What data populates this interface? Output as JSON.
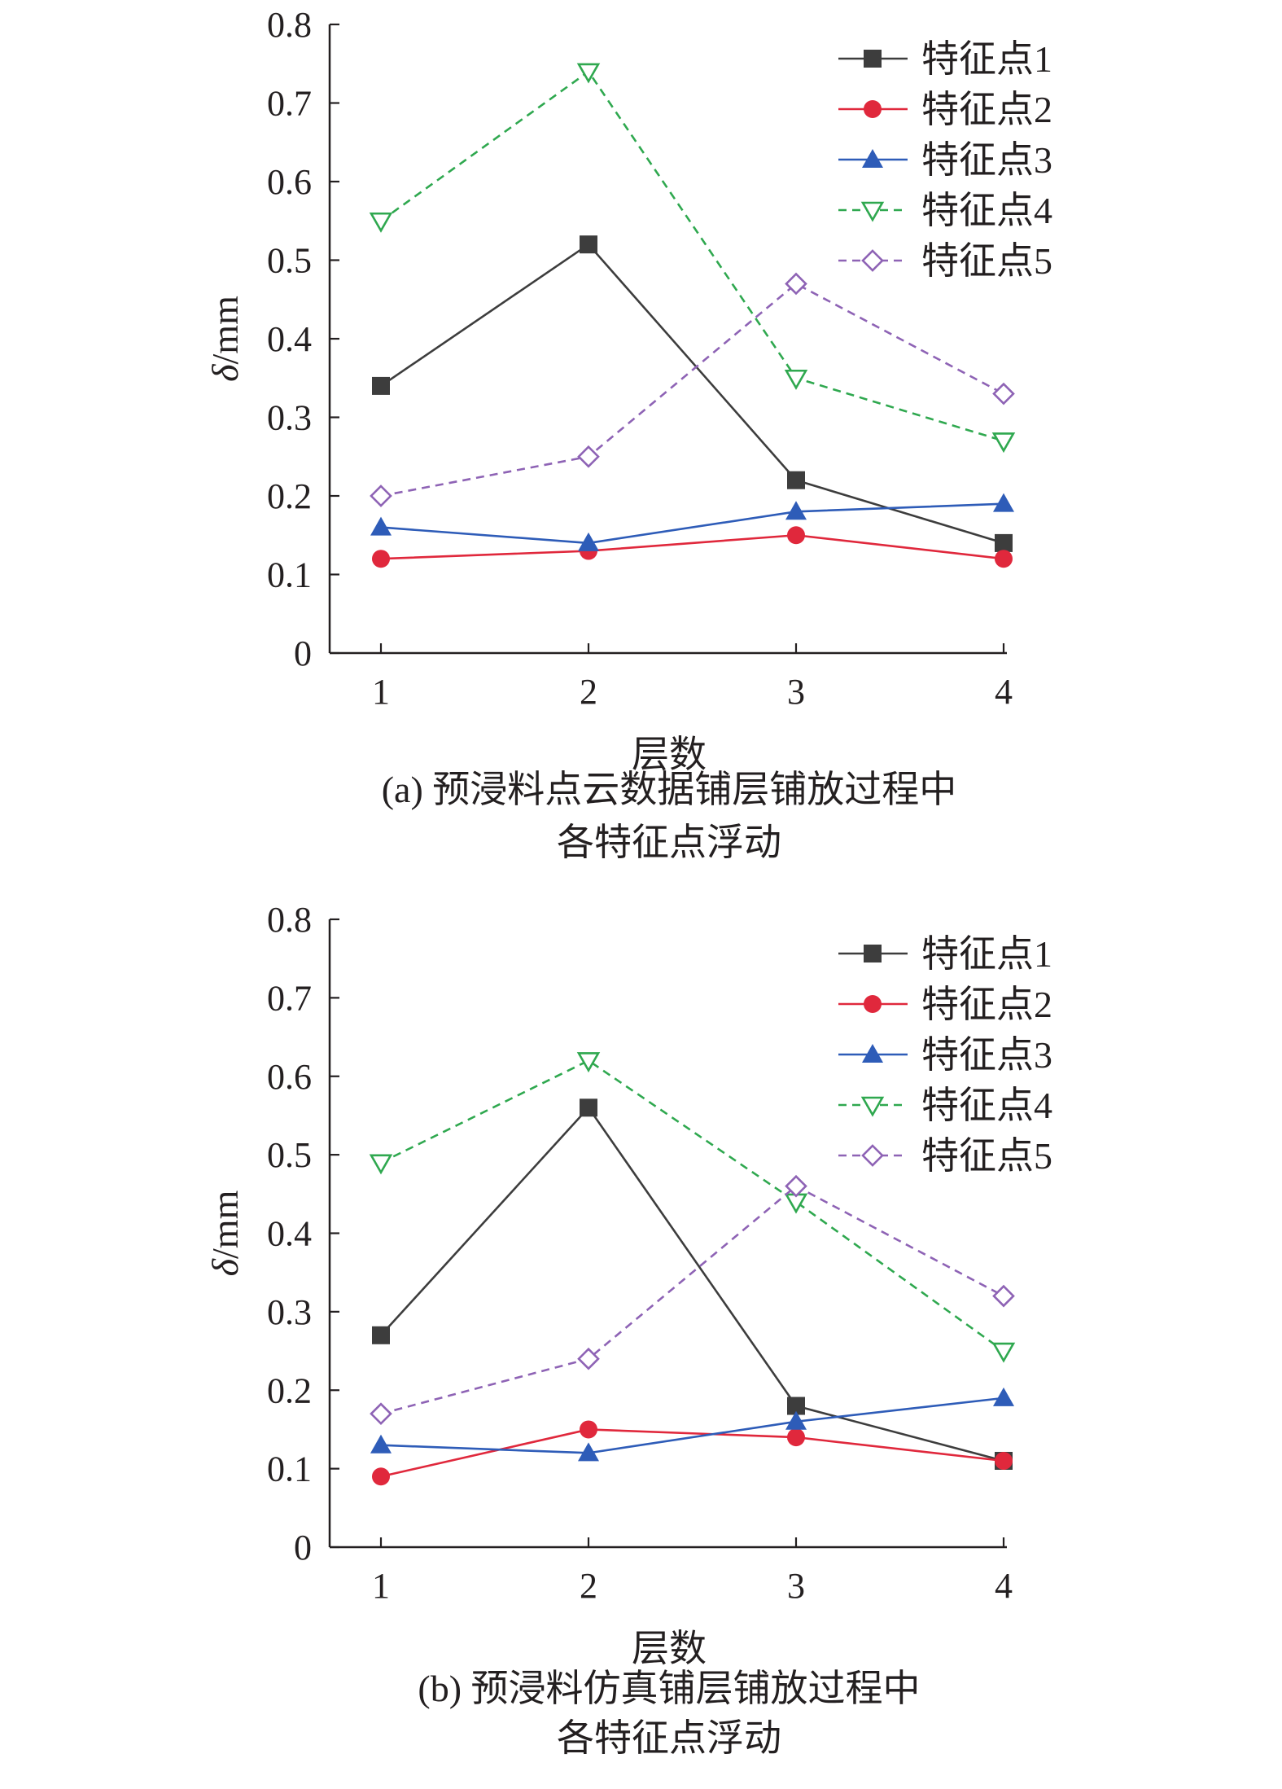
{
  "chart_data": [
    {
      "type": "line",
      "caption_line1": "(a) 预浸料点云数据铺层铺放过程中",
      "caption_line2": "各特征点浮动",
      "xlabel": "层数",
      "ylabel_italic": "δ",
      "ylabel_unit": "/mm",
      "categories": [
        "1",
        "2",
        "3",
        "4"
      ],
      "ylim": [
        0,
        0.8
      ],
      "yticks": [
        "0",
        "0.1",
        "0.2",
        "0.3",
        "0.4",
        "0.5",
        "0.6",
        "0.7",
        "0.8"
      ],
      "grid": false,
      "legend_position": "top-right",
      "series": [
        {
          "name": "特征点1",
          "values": [
            0.34,
            0.52,
            0.22,
            0.14
          ],
          "color": "#3d3d3d",
          "marker": "square",
          "dash": "solid"
        },
        {
          "name": "特征点2",
          "values": [
            0.12,
            0.13,
            0.15,
            0.12
          ],
          "color": "#e0283c",
          "marker": "circle",
          "dash": "solid"
        },
        {
          "name": "特征点3",
          "values": [
            0.16,
            0.14,
            0.18,
            0.19
          ],
          "color": "#2e5cb8",
          "marker": "triangle-up",
          "dash": "solid"
        },
        {
          "name": "特征点4",
          "values": [
            0.55,
            0.74,
            0.35,
            0.27
          ],
          "color": "#2fa84f",
          "marker": "triangle-down-open",
          "dash": "dashed"
        },
        {
          "name": "特征点5",
          "values": [
            0.2,
            0.25,
            0.47,
            0.33
          ],
          "color": "#8e63b5",
          "marker": "diamond-open",
          "dash": "dashed"
        }
      ]
    },
    {
      "type": "line",
      "caption_line1": "(b) 预浸料仿真铺层铺放过程中",
      "caption_line2": "各特征点浮动",
      "xlabel": "层数",
      "ylabel_italic": "δ",
      "ylabel_unit": "/mm",
      "categories": [
        "1",
        "2",
        "3",
        "4"
      ],
      "ylim": [
        0,
        0.8
      ],
      "yticks": [
        "0",
        "0.1",
        "0.2",
        "0.3",
        "0.4",
        "0.5",
        "0.6",
        "0.7",
        "0.8"
      ],
      "grid": false,
      "legend_position": "top-right",
      "series": [
        {
          "name": "特征点1",
          "values": [
            0.27,
            0.56,
            0.18,
            0.11
          ],
          "color": "#3d3d3d",
          "marker": "square",
          "dash": "solid"
        },
        {
          "name": "特征点2",
          "values": [
            0.09,
            0.15,
            0.14,
            0.11
          ],
          "color": "#e0283c",
          "marker": "circle",
          "dash": "solid"
        },
        {
          "name": "特征点3",
          "values": [
            0.13,
            0.12,
            0.16,
            0.19
          ],
          "color": "#2e5cb8",
          "marker": "triangle-up",
          "dash": "solid"
        },
        {
          "name": "特征点4",
          "values": [
            0.49,
            0.62,
            0.44,
            0.25
          ],
          "color": "#2fa84f",
          "marker": "triangle-down-open",
          "dash": "dashed"
        },
        {
          "name": "特征点5",
          "values": [
            0.17,
            0.24,
            0.46,
            0.32
          ],
          "color": "#8e63b5",
          "marker": "diamond-open",
          "dash": "dashed"
        }
      ]
    }
  ]
}
